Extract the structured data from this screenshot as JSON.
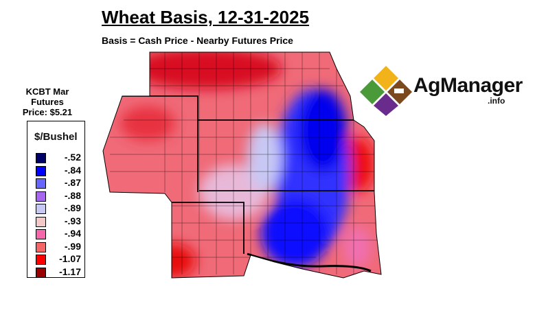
{
  "title": "Wheat Basis, 12-31-2025",
  "subtitle": "Basis = Cash Price - Nearby Futures Price",
  "futures": {
    "line1": "KCBT Mar",
    "line2": "Futures",
    "line3": "Price: $5.21"
  },
  "legend": {
    "title": "$/Bushel",
    "items": [
      {
        "label": "-.52",
        "color": "#000066"
      },
      {
        "label": "-.84",
        "color": "#0000ff"
      },
      {
        "label": "-.87",
        "color": "#6666ff"
      },
      {
        "label": "-.88",
        "color": "#a866f0"
      },
      {
        "label": "-.89",
        "color": "#c8c8f4"
      },
      {
        "label": "-.93",
        "color": "#f5c8c8"
      },
      {
        "label": "-.94",
        "color": "#f566aa"
      },
      {
        "label": "-.99",
        "color": "#f56666"
      },
      {
        "label": "-1.07",
        "color": "#ff0000"
      },
      {
        "label": "-1.17",
        "color": "#990000"
      }
    ]
  },
  "logo": {
    "name": "AgManager",
    "suffix": ".info"
  }
}
